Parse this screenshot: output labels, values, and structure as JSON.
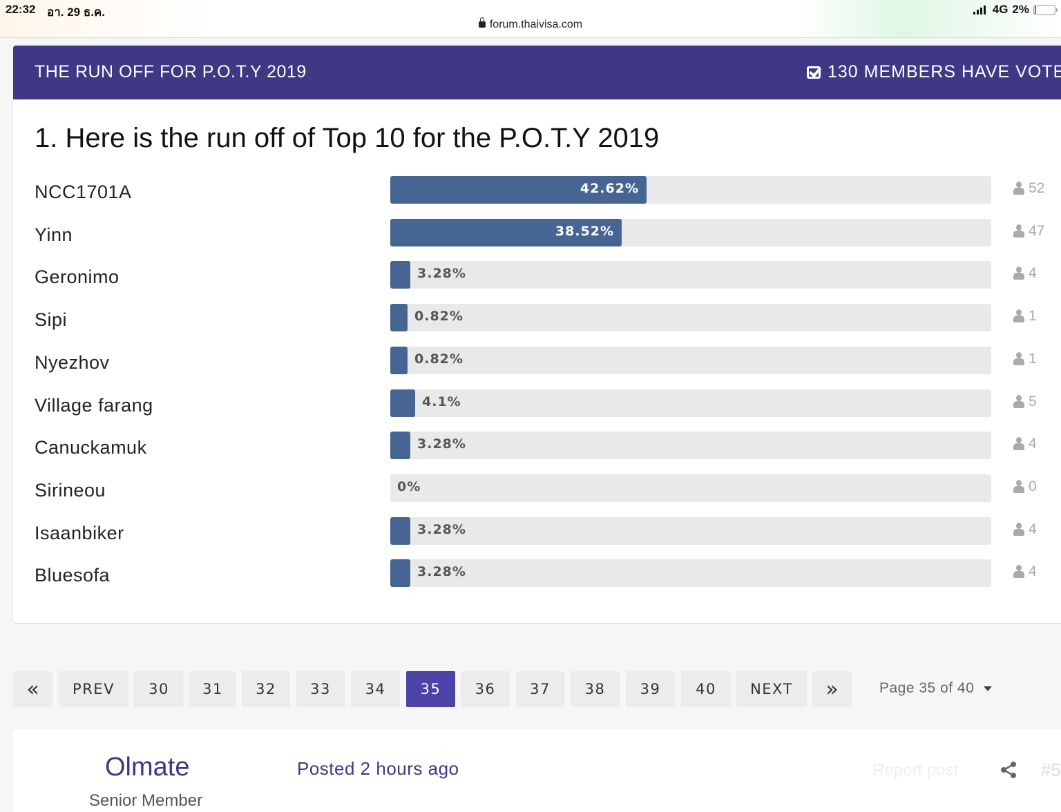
{
  "status_bar": {
    "time": "22:32",
    "date": "อา. 29 ธ.ค.",
    "url": "forum.thaivisa.com",
    "network": "4G",
    "battery": "2%"
  },
  "poll": {
    "title": "THE RUN OFF FOR P.O.T.Y 2019",
    "voted_text": "130 MEMBERS HAVE VOTE",
    "question": "1. Here is the run off of Top 10 for the P.O.T.Y 2019",
    "bar_color": "#476592",
    "header_color": "#3e3885",
    "options": [
      {
        "label": "NCC1701A",
        "percent": "42.62%",
        "fraction": 0.4262,
        "votes": "52"
      },
      {
        "label": "Yinn",
        "percent": "38.52%",
        "fraction": 0.3852,
        "votes": "47"
      },
      {
        "label": "Geronimo",
        "percent": "3.28%",
        "fraction": 0.0328,
        "votes": "4"
      },
      {
        "label": "Sipi",
        "percent": "0.82%",
        "fraction": 0.0082,
        "votes": "1"
      },
      {
        "label": "Nyezhov",
        "percent": "0.82%",
        "fraction": 0.0082,
        "votes": "1"
      },
      {
        "label": "Village farang",
        "percent": "4.1%",
        "fraction": 0.041,
        "votes": "5"
      },
      {
        "label": "Canuckamuk",
        "percent": "3.28%",
        "fraction": 0.0328,
        "votes": "4"
      },
      {
        "label": "Sirineou",
        "percent": "0%",
        "fraction": 0,
        "votes": "0"
      },
      {
        "label": "Isaanbiker",
        "percent": "3.28%",
        "fraction": 0.0328,
        "votes": "4"
      },
      {
        "label": "Bluesofa",
        "percent": "3.28%",
        "fraction": 0.0328,
        "votes": "4"
      }
    ]
  },
  "pagination": {
    "first": "«",
    "prev": "PREV",
    "pages": [
      "30",
      "31",
      "32",
      "33",
      "34",
      "35",
      "36",
      "37",
      "38",
      "39",
      "40"
    ],
    "current": "35",
    "next": "NEXT",
    "last": "»",
    "page_select": "Page 35 of 40"
  },
  "post": {
    "author": "Olmate",
    "author_sub": "Senior Member",
    "posted": "Posted 2 hours ago",
    "report": "Report post",
    "post_number": "#5"
  }
}
